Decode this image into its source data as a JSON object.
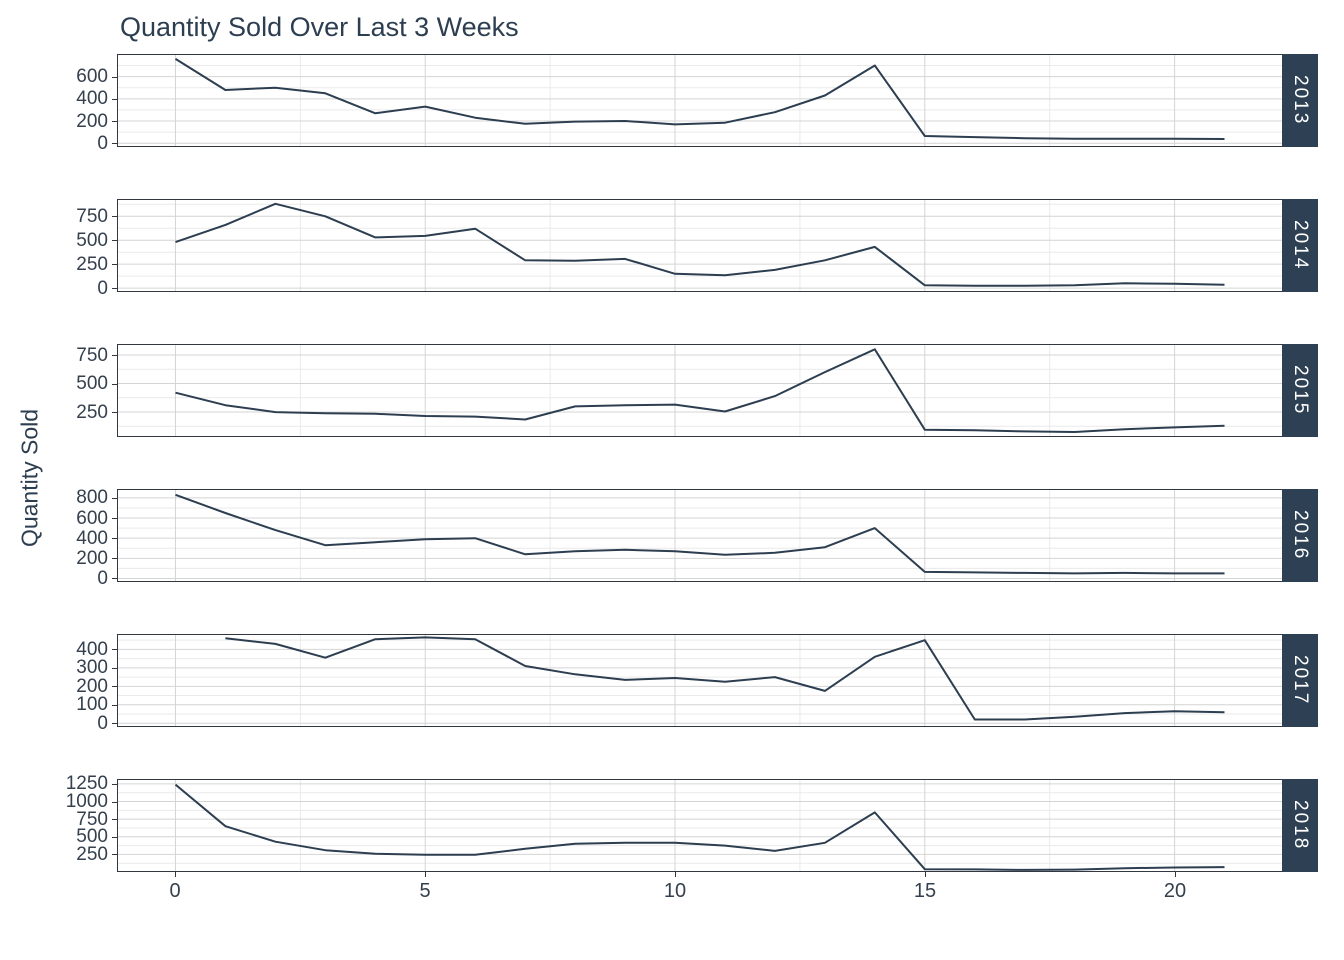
{
  "page": {
    "title": "Quantity Sold Over Last 3 Weeks",
    "y_axis_label": "Quantity Sold"
  },
  "style": {
    "background": "#ffffff",
    "line_color": "#2c3e50",
    "strip_background": "#2e4053",
    "strip_text_color": "#ffffff",
    "title_color": "#2c3e50",
    "axis_text_color": "#34404d",
    "grid_major_color": "#d4d4d4",
    "grid_minor_color": "#eaeaea",
    "panel_border_color": "#333740"
  },
  "chart_data": {
    "type": "line",
    "title": "Quantity Sold Over Last 3 Weeks",
    "xlabel": "",
    "ylabel": "Quantity Sold",
    "legend": "none",
    "grid": true,
    "facet_variable": "year",
    "facet_strip_position": "right",
    "xlim": [
      -1.15,
      22.15
    ],
    "x_ticks": [
      0,
      5,
      10,
      15,
      20
    ],
    "x_minor_ticks": [
      2.5,
      7.5,
      12.5,
      17.5
    ],
    "facets": [
      {
        "label": "2013",
        "y_ticks": [
          0,
          200,
          400,
          600
        ],
        "y_minor_step": 100,
        "ylim": [
          -25,
          795
        ],
        "x": [
          0,
          1,
          2,
          3,
          4,
          5,
          6,
          7,
          8,
          9,
          10,
          11,
          12,
          13,
          14,
          15,
          16,
          17,
          18,
          19,
          20,
          21
        ],
        "values": [
          760,
          480,
          500,
          450,
          270,
          330,
          230,
          175,
          195,
          200,
          170,
          185,
          280,
          430,
          700,
          65,
          55,
          45,
          40,
          40,
          40,
          38
        ]
      },
      {
        "label": "2014",
        "y_ticks": [
          0,
          250,
          500,
          750
        ],
        "y_minor_step": 125,
        "ylim": [
          -30,
          920
        ],
        "x": [
          0,
          1,
          2,
          3,
          4,
          5,
          6,
          7,
          8,
          9,
          10,
          11,
          12,
          13,
          14,
          15,
          16,
          17,
          18,
          19,
          20,
          21
        ],
        "values": [
          480,
          660,
          880,
          750,
          530,
          545,
          620,
          290,
          285,
          305,
          150,
          135,
          190,
          290,
          430,
          30,
          25,
          25,
          30,
          50,
          45,
          35
        ]
      },
      {
        "label": "2015",
        "y_ticks": [
          250,
          500,
          750
        ],
        "y_minor_step": 125,
        "ylim": [
          40,
          838
        ],
        "x": [
          0,
          1,
          2,
          3,
          4,
          5,
          6,
          7,
          8,
          9,
          10,
          11,
          12,
          13,
          14,
          15,
          16,
          17,
          18,
          19,
          20,
          21
        ],
        "values": [
          420,
          310,
          250,
          240,
          235,
          215,
          210,
          185,
          300,
          310,
          315,
          255,
          390,
          600,
          800,
          95,
          90,
          80,
          75,
          100,
          115,
          130
        ]
      },
      {
        "label": "2016",
        "y_ticks": [
          0,
          200,
          400,
          600,
          800
        ],
        "y_minor_step": 100,
        "ylim": [
          -25,
          878
        ],
        "x": [
          0,
          1,
          2,
          3,
          4,
          5,
          6,
          7,
          8,
          9,
          10,
          11,
          12,
          13,
          14,
          15,
          16,
          17,
          18,
          19,
          20,
          21
        ],
        "values": [
          830,
          650,
          480,
          330,
          360,
          390,
          400,
          240,
          270,
          285,
          270,
          235,
          255,
          310,
          500,
          65,
          60,
          55,
          50,
          55,
          50,
          50
        ]
      },
      {
        "label": "2017",
        "y_ticks": [
          0,
          100,
          200,
          300,
          400
        ],
        "y_minor_step": 50,
        "ylim": [
          -15,
          478
        ],
        "x": [
          1,
          2,
          3,
          4,
          5,
          6,
          7,
          8,
          9,
          10,
          11,
          12,
          13,
          14,
          15,
          16,
          17,
          18,
          19,
          20,
          21
        ],
        "values": [
          460,
          430,
          355,
          455,
          465,
          455,
          310,
          265,
          235,
          245,
          225,
          250,
          175,
          360,
          450,
          20,
          20,
          35,
          55,
          65,
          60
        ]
      },
      {
        "label": "2018",
        "y_ticks": [
          250,
          500,
          750,
          1000,
          1250
        ],
        "y_minor_step": 125,
        "ylim": [
          15,
          1305
        ],
        "x": [
          0,
          1,
          2,
          3,
          4,
          5,
          6,
          7,
          8,
          9,
          10,
          11,
          12,
          13,
          14,
          15,
          16,
          17,
          18,
          19,
          20,
          21
        ],
        "values": [
          1240,
          650,
          430,
          310,
          260,
          245,
          245,
          330,
          400,
          415,
          415,
          375,
          300,
          415,
          845,
          40,
          38,
          30,
          35,
          55,
          65,
          70
        ]
      }
    ]
  }
}
